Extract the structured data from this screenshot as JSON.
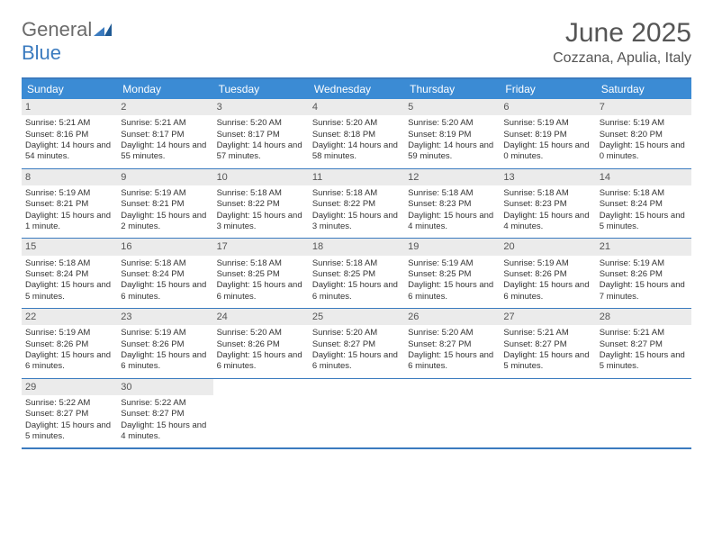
{
  "logo": {
    "text1": "General",
    "text2": "Blue"
  },
  "title": "June 2025",
  "location": "Cozzana, Apulia, Italy",
  "colors": {
    "header_bg": "#3b8bd4",
    "border": "#3b7bbf",
    "daynum_bg": "#ebebeb",
    "logo_gray": "#6b6b6b",
    "logo_blue": "#3b7bbf"
  },
  "day_headers": [
    "Sunday",
    "Monday",
    "Tuesday",
    "Wednesday",
    "Thursday",
    "Friday",
    "Saturday"
  ],
  "days": [
    {
      "n": "1",
      "sr": "5:21 AM",
      "ss": "8:16 PM",
      "dl": "14 hours and 54 minutes."
    },
    {
      "n": "2",
      "sr": "5:21 AM",
      "ss": "8:17 PM",
      "dl": "14 hours and 55 minutes."
    },
    {
      "n": "3",
      "sr": "5:20 AM",
      "ss": "8:17 PM",
      "dl": "14 hours and 57 minutes."
    },
    {
      "n": "4",
      "sr": "5:20 AM",
      "ss": "8:18 PM",
      "dl": "14 hours and 58 minutes."
    },
    {
      "n": "5",
      "sr": "5:20 AM",
      "ss": "8:19 PM",
      "dl": "14 hours and 59 minutes."
    },
    {
      "n": "6",
      "sr": "5:19 AM",
      "ss": "8:19 PM",
      "dl": "15 hours and 0 minutes."
    },
    {
      "n": "7",
      "sr": "5:19 AM",
      "ss": "8:20 PM",
      "dl": "15 hours and 0 minutes."
    },
    {
      "n": "8",
      "sr": "5:19 AM",
      "ss": "8:21 PM",
      "dl": "15 hours and 1 minute."
    },
    {
      "n": "9",
      "sr": "5:19 AM",
      "ss": "8:21 PM",
      "dl": "15 hours and 2 minutes."
    },
    {
      "n": "10",
      "sr": "5:18 AM",
      "ss": "8:22 PM",
      "dl": "15 hours and 3 minutes."
    },
    {
      "n": "11",
      "sr": "5:18 AM",
      "ss": "8:22 PM",
      "dl": "15 hours and 3 minutes."
    },
    {
      "n": "12",
      "sr": "5:18 AM",
      "ss": "8:23 PM",
      "dl": "15 hours and 4 minutes."
    },
    {
      "n": "13",
      "sr": "5:18 AM",
      "ss": "8:23 PM",
      "dl": "15 hours and 4 minutes."
    },
    {
      "n": "14",
      "sr": "5:18 AM",
      "ss": "8:24 PM",
      "dl": "15 hours and 5 minutes."
    },
    {
      "n": "15",
      "sr": "5:18 AM",
      "ss": "8:24 PM",
      "dl": "15 hours and 5 minutes."
    },
    {
      "n": "16",
      "sr": "5:18 AM",
      "ss": "8:24 PM",
      "dl": "15 hours and 6 minutes."
    },
    {
      "n": "17",
      "sr": "5:18 AM",
      "ss": "8:25 PM",
      "dl": "15 hours and 6 minutes."
    },
    {
      "n": "18",
      "sr": "5:18 AM",
      "ss": "8:25 PM",
      "dl": "15 hours and 6 minutes."
    },
    {
      "n": "19",
      "sr": "5:19 AM",
      "ss": "8:25 PM",
      "dl": "15 hours and 6 minutes."
    },
    {
      "n": "20",
      "sr": "5:19 AM",
      "ss": "8:26 PM",
      "dl": "15 hours and 6 minutes."
    },
    {
      "n": "21",
      "sr": "5:19 AM",
      "ss": "8:26 PM",
      "dl": "15 hours and 7 minutes."
    },
    {
      "n": "22",
      "sr": "5:19 AM",
      "ss": "8:26 PM",
      "dl": "15 hours and 6 minutes."
    },
    {
      "n": "23",
      "sr": "5:19 AM",
      "ss": "8:26 PM",
      "dl": "15 hours and 6 minutes."
    },
    {
      "n": "24",
      "sr": "5:20 AM",
      "ss": "8:26 PM",
      "dl": "15 hours and 6 minutes."
    },
    {
      "n": "25",
      "sr": "5:20 AM",
      "ss": "8:27 PM",
      "dl": "15 hours and 6 minutes."
    },
    {
      "n": "26",
      "sr": "5:20 AM",
      "ss": "8:27 PM",
      "dl": "15 hours and 6 minutes."
    },
    {
      "n": "27",
      "sr": "5:21 AM",
      "ss": "8:27 PM",
      "dl": "15 hours and 5 minutes."
    },
    {
      "n": "28",
      "sr": "5:21 AM",
      "ss": "8:27 PM",
      "dl": "15 hours and 5 minutes."
    },
    {
      "n": "29",
      "sr": "5:22 AM",
      "ss": "8:27 PM",
      "dl": "15 hours and 5 minutes."
    },
    {
      "n": "30",
      "sr": "5:22 AM",
      "ss": "8:27 PM",
      "dl": "15 hours and 4 minutes."
    }
  ],
  "labels": {
    "sunrise": "Sunrise: ",
    "sunset": "Sunset: ",
    "daylight": "Daylight: "
  }
}
